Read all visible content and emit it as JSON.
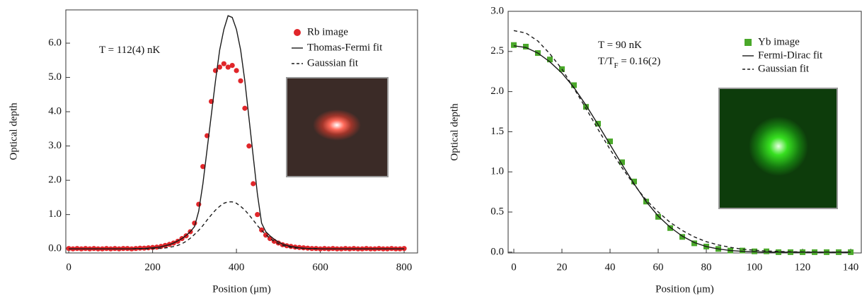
{
  "chart_data": [
    {
      "type": "line",
      "xlabel": "Position (μm)",
      "ylabel": "Optical depth",
      "annotations": [
        [
          "T = 112(4) nK"
        ]
      ],
      "xlim": [
        -7,
        832
      ],
      "ylim": [
        -0.12,
        6.97
      ],
      "xticks": [
        0,
        200,
        400,
        600,
        800
      ],
      "yticks": [
        {
          "value": 0,
          "label": "0.0"
        },
        {
          "value": 1,
          "label": "1.0"
        },
        {
          "value": 2,
          "label": "2.0"
        },
        {
          "value": 3,
          "label": "3.0"
        },
        {
          "value": 4,
          "label": "4.0"
        },
        {
          "value": 5,
          "label": "5.0"
        },
        {
          "value": 6,
          "label": "6.0"
        }
      ],
      "legend": "top-right",
      "x": [
        0,
        10,
        20,
        30,
        40,
        50,
        60,
        70,
        80,
        90,
        100,
        110,
        120,
        130,
        140,
        150,
        160,
        170,
        180,
        190,
        200,
        210,
        220,
        230,
        240,
        250,
        260,
        270,
        280,
        290,
        300,
        310,
        320,
        330,
        340,
        350,
        360,
        370,
        380,
        390,
        400,
        410,
        420,
        430,
        440,
        450,
        460,
        470,
        480,
        490,
        500,
        510,
        520,
        530,
        540,
        550,
        560,
        570,
        580,
        590,
        600,
        610,
        620,
        630,
        640,
        650,
        660,
        670,
        680,
        690,
        700,
        710,
        720,
        730,
        740,
        750,
        760,
        770,
        780,
        790,
        800
      ],
      "series": [
        {
          "name": "Rb image",
          "kind": "scatter",
          "marker": "circle",
          "color": "#e0262a",
          "values": [
            0.01,
            0.0,
            0.01,
            0.0,
            0.01,
            0.0,
            0.01,
            0.0,
            0.0,
            0.01,
            0.0,
            0.01,
            0.0,
            0.01,
            0.01,
            0.0,
            0.01,
            0.02,
            0.02,
            0.03,
            0.04,
            0.05,
            0.07,
            0.1,
            0.13,
            0.17,
            0.22,
            0.3,
            0.38,
            0.5,
            0.75,
            1.3,
            2.4,
            3.3,
            4.3,
            5.2,
            5.3,
            5.4,
            5.3,
            5.35,
            5.2,
            4.9,
            4.1,
            3.0,
            1.9,
            1.0,
            0.55,
            0.4,
            0.3,
            0.22,
            0.17,
            0.12,
            0.09,
            0.07,
            0.05,
            0.04,
            0.03,
            0.02,
            0.01,
            0.01,
            0.0,
            0.01,
            0.0,
            0.01,
            0.0,
            0.0,
            0.01,
            0.0,
            0.01,
            0.0,
            0.0,
            0.01,
            0.0,
            0.0,
            0.01,
            0.0,
            0.0,
            0.01,
            0.0,
            0.0,
            0.01
          ]
        },
        {
          "name": "Thomas-Fermi fit",
          "kind": "line",
          "dash": false,
          "color": "#1a1a1a",
          "values": [
            0,
            0,
            0,
            0,
            0,
            0,
            0,
            0,
            0,
            0,
            0,
            0,
            0,
            0,
            0,
            0,
            0.01,
            0.01,
            0.01,
            0.02,
            0.03,
            0.04,
            0.06,
            0.09,
            0.12,
            0.17,
            0.23,
            0.3,
            0.39,
            0.5,
            0.65,
            1.1,
            1.9,
            2.9,
            3.9,
            4.9,
            5.8,
            6.4,
            6.8,
            6.75,
            6.4,
            5.8,
            4.9,
            3.8,
            2.7,
            1.6,
            0.75,
            0.5,
            0.38,
            0.28,
            0.2,
            0.14,
            0.1,
            0.07,
            0.05,
            0.03,
            0.02,
            0.01,
            0.01,
            0.01,
            0,
            0,
            0,
            0,
            0,
            0,
            0,
            0,
            0,
            0,
            0,
            0,
            0,
            0,
            0,
            0,
            0,
            0,
            0,
            0,
            0
          ]
        },
        {
          "name": "Gaussian fit",
          "kind": "line",
          "dash": true,
          "color": "#1a1a1a",
          "values": [
            0,
            0,
            0,
            0,
            0,
            0,
            0,
            0,
            0,
            0,
            0,
            0,
            0,
            0,
            0,
            0,
            0,
            0,
            0,
            0,
            0.005,
            0.009,
            0.015,
            0.026,
            0.043,
            0.068,
            0.1,
            0.15,
            0.22,
            0.31,
            0.42,
            0.54,
            0.68,
            0.84,
            0.99,
            1.13,
            1.24,
            1.33,
            1.37,
            1.37,
            1.33,
            1.24,
            1.13,
            0.99,
            0.84,
            0.68,
            0.54,
            0.42,
            0.31,
            0.22,
            0.15,
            0.1,
            0.068,
            0.043,
            0.026,
            0.015,
            0.009,
            0.005,
            0,
            0,
            0,
            0,
            0,
            0,
            0,
            0,
            0,
            0,
            0,
            0,
            0,
            0,
            0,
            0,
            0,
            0,
            0,
            0,
            0,
            0,
            0
          ]
        }
      ]
    },
    {
      "type": "line",
      "xlabel": "Position (μm)",
      "ylabel": "Optical depth",
      "annotations": [
        [
          "T = 90 nK"
        ],
        [
          "T/T",
          "F",
          " = 0.16(2)"
        ]
      ],
      "xlim": [
        -2.35,
        144.4
      ],
      "ylim": [
        -0.01,
        3.0
      ],
      "xticks": [
        0,
        20,
        40,
        60,
        80,
        100,
        120,
        140
      ],
      "yticks": [
        {
          "value": 0,
          "label": "0.0"
        },
        {
          "value": 0.5,
          "label": "0.5"
        },
        {
          "value": 1,
          "label": "1.0"
        },
        {
          "value": 1.5,
          "label": "1.5"
        },
        {
          "value": 2,
          "label": "2.0"
        },
        {
          "value": 2.5,
          "label": "2.5"
        },
        {
          "value": 3,
          "label": "3.0"
        }
      ],
      "legend": "top-right",
      "x": [
        0,
        5,
        10,
        15,
        20,
        25,
        30,
        35,
        40,
        45,
        50,
        55,
        60,
        65,
        70,
        75,
        80,
        85,
        90,
        95,
        100,
        105,
        110,
        115,
        120,
        125,
        130,
        135,
        140
      ],
      "series": [
        {
          "name": "Yb image",
          "kind": "scatter",
          "marker": "square",
          "color": "#4aa82a",
          "values": [
            2.58,
            2.56,
            2.48,
            2.4,
            2.28,
            2.08,
            1.81,
            1.6,
            1.38,
            1.12,
            0.88,
            0.63,
            0.44,
            0.3,
            0.19,
            0.11,
            0.07,
            0.04,
            0.02,
            0.02,
            0.01,
            0.01,
            0.0,
            0.0,
            0.0,
            0.0,
            0.0,
            0.0,
            0.0
          ]
        },
        {
          "name": "Fermi-Dirac fit",
          "kind": "line",
          "dash": false,
          "color": "#1a1a1a",
          "values": [
            2.57,
            2.55,
            2.48,
            2.37,
            2.23,
            2.05,
            1.83,
            1.59,
            1.34,
            1.09,
            0.85,
            0.63,
            0.45,
            0.31,
            0.2,
            0.12,
            0.07,
            0.04,
            0.02,
            0.01,
            0.005,
            0,
            0,
            0,
            0,
            0,
            0,
            0,
            0
          ]
        },
        {
          "name": "Gaussian fit",
          "kind": "line",
          "dash": true,
          "color": "#1a1a1a",
          "values": [
            2.76,
            2.73,
            2.63,
            2.47,
            2.28,
            2.04,
            1.79,
            1.53,
            1.28,
            1.05,
            0.84,
            0.65,
            0.5,
            0.37,
            0.27,
            0.19,
            0.13,
            0.09,
            0.06,
            0.037,
            0.024,
            0.015,
            0.009,
            0.005,
            0.003,
            0.002,
            0.001,
            0,
            0
          ]
        }
      ]
    }
  ]
}
